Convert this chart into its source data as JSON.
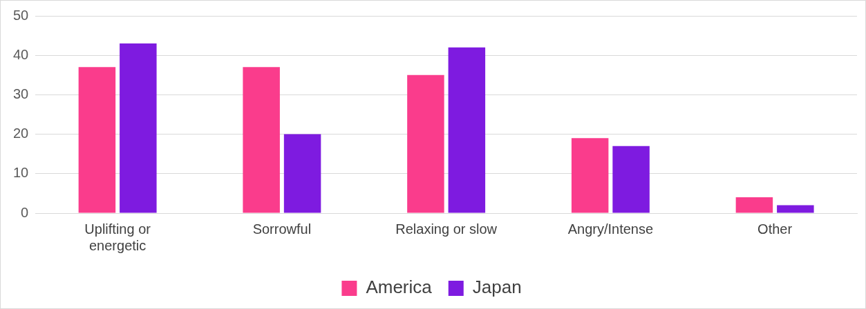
{
  "chart_data": {
    "type": "bar",
    "categories": [
      "Uplifting or energetic",
      "Sorrowful",
      "Relaxing or slow",
      "Angry/Intense",
      "Other"
    ],
    "series": [
      {
        "name": "America",
        "color": "#fa3c8c",
        "values": [
          37,
          37,
          35,
          19,
          4
        ]
      },
      {
        "name": "Japan",
        "color": "#7e1be0",
        "values": [
          43,
          20,
          42,
          17,
          2
        ]
      }
    ],
    "ylim": [
      0,
      50
    ],
    "yticks": [
      0,
      10,
      20,
      30,
      40,
      50
    ],
    "grid": "y",
    "legend": "bottom"
  }
}
